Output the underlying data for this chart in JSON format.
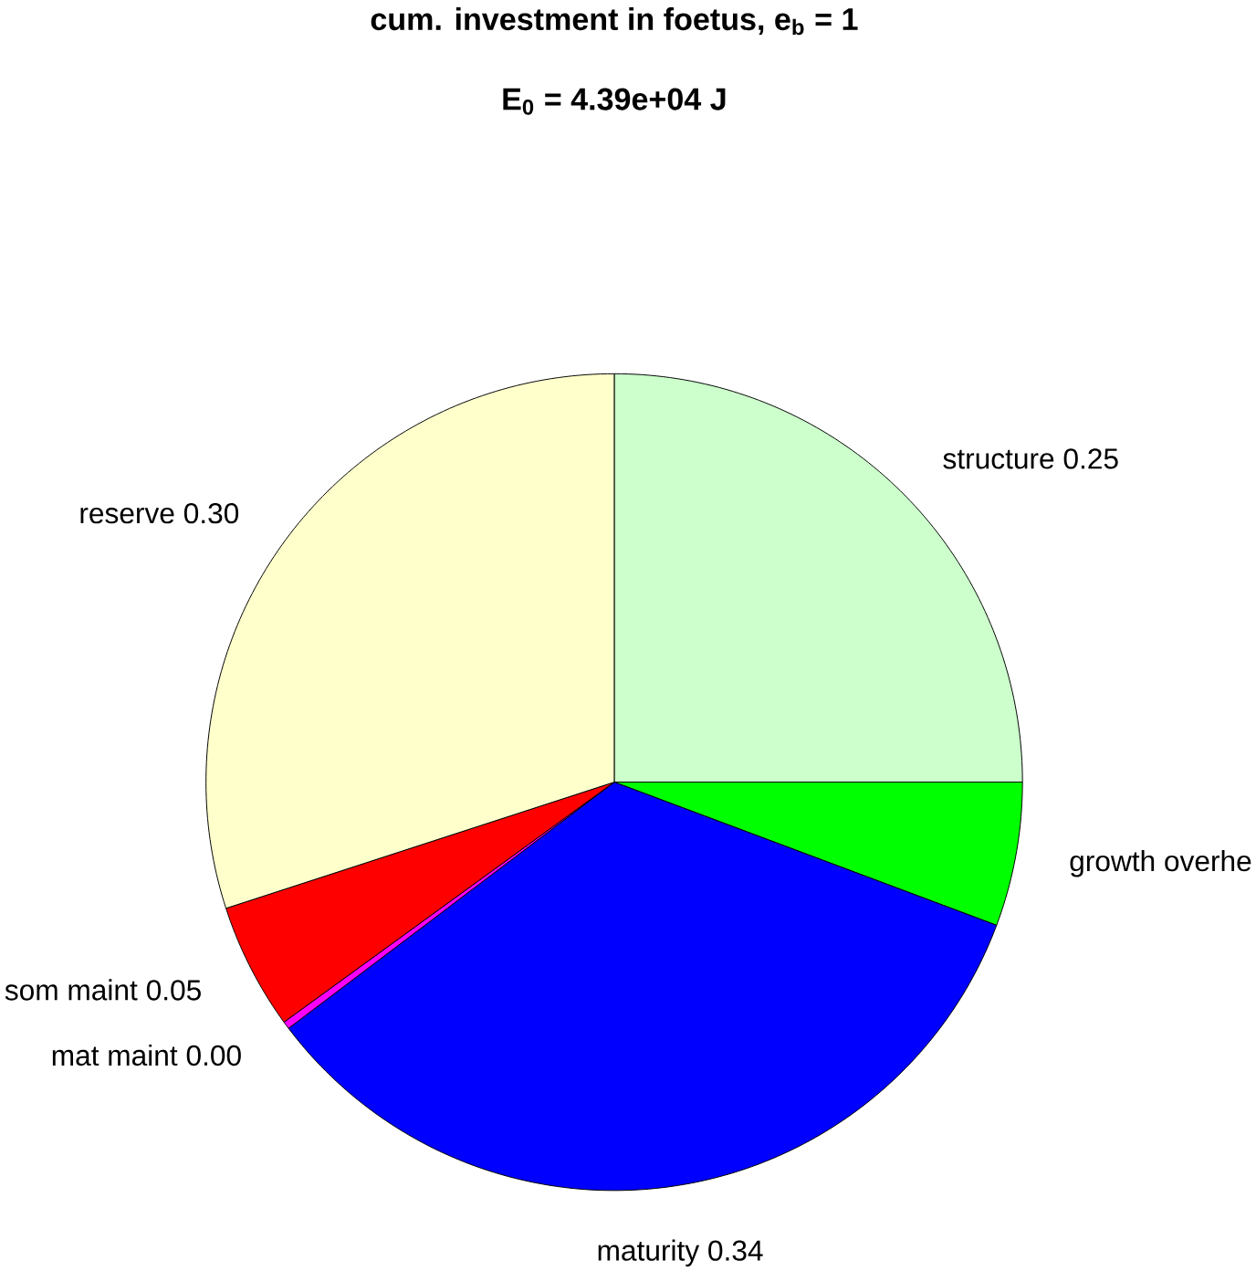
{
  "chart_data": {
    "type": "pie",
    "title": "cum. investment in foetus, e$_{b}$ = 1",
    "subtitle": "E$_{0}$ = 4.39e+04 J",
    "categories": [
      "structure",
      "growth overhe",
      "maturity",
      "mat maint",
      "som maint",
      "reserve"
    ],
    "values": [
      0.25,
      0.057,
      0.34,
      0.003,
      0.05,
      0.3
    ],
    "value_labels": [
      "0.25",
      null,
      "0.34",
      "0.00",
      "0.05",
      "0.30"
    ],
    "colors": [
      "#ccffcc",
      "#00ff00",
      "#0000ff",
      "#ff00ff",
      "#ff0000",
      "#ffffcc"
    ]
  }
}
